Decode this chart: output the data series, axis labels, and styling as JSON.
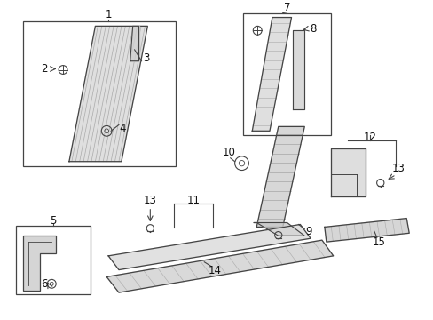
{
  "bg_color": "#ffffff",
  "fig_width": 4.89,
  "fig_height": 3.6,
  "dpi": 100,
  "line_color": "#444444",
  "text_color": "#111111",
  "font_size": 8.5
}
